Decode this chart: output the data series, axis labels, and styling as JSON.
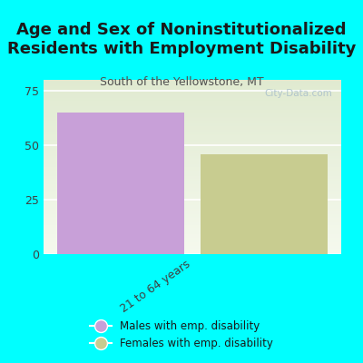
{
  "title": "Age and Sex of Noninstitutionalized\nResidents with Employment Disability",
  "subtitle": "South of the Yellowstone, MT",
  "watermark": "City-Data.com",
  "categories": [
    "21 to 64 years"
  ],
  "male_values": [
    65
  ],
  "female_values": [
    46
  ],
  "male_color": "#c8a0d8",
  "female_color": "#c8cc90",
  "ylim": [
    0,
    80
  ],
  "yticks": [
    0,
    25,
    50,
    75
  ],
  "background_color": "#00ffff",
  "plot_bg_top": "#e0ead0",
  "plot_bg_bottom": "#f5f9ee",
  "bar_width": 0.3,
  "legend_male": "Males with emp. disability",
  "legend_female": "Females with emp. disability",
  "title_fontsize": 13,
  "subtitle_fontsize": 9,
  "tick_label_color": "#404040",
  "xlabel_rotation": 35
}
